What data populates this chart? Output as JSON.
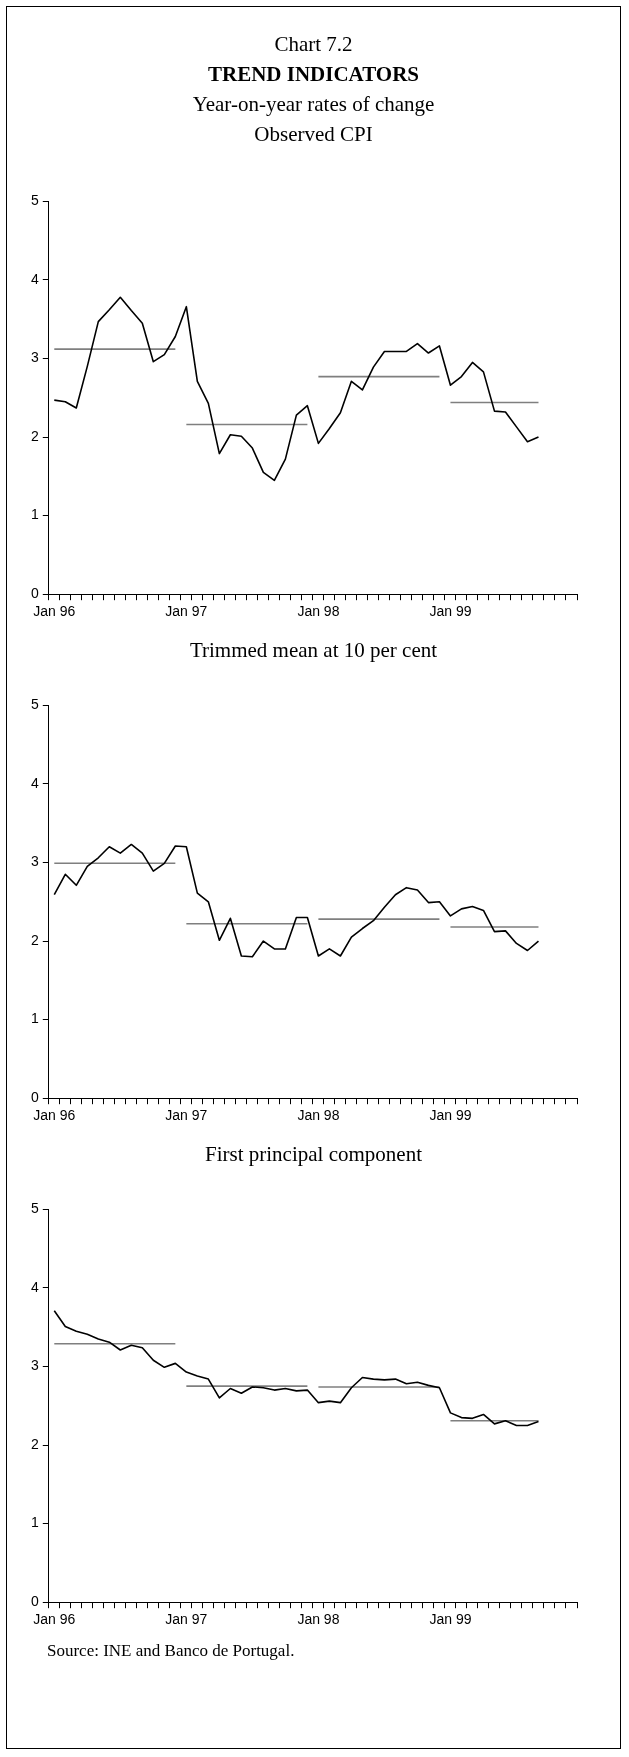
{
  "chart_data": [
    {
      "type": "other",
      "title": "Chart 7.2",
      "subtitle": "TREND INDICATORS",
      "annotations": [
        "Year-on-year rates of change"
      ]
    },
    {
      "type": "line",
      "title": "Observed CPI",
      "categories": [
        "Jan 96",
        null,
        null,
        null,
        null,
        null,
        null,
        null,
        null,
        null,
        null,
        null,
        "Jan 97",
        null,
        null,
        null,
        null,
        null,
        null,
        null,
        null,
        null,
        null,
        null,
        "Jan 98",
        null,
        null,
        null,
        null,
        null,
        null,
        null,
        null,
        null,
        null,
        null,
        "Jan 99",
        null,
        null,
        null,
        null,
        null,
        null,
        null,
        null,
        null,
        null,
        null
      ],
      "series": [
        {
          "color": "#000000",
          "values": [
            2.47,
            2.45,
            2.37,
            2.9,
            3.47,
            3.62,
            3.78,
            3.61,
            3.45,
            2.96,
            3.05,
            3.28,
            3.66,
            2.71,
            2.43,
            1.79,
            2.03,
            2.01,
            1.86,
            1.55,
            1.45,
            1.72,
            2.28,
            2.4,
            1.92,
            2.11,
            2.31,
            2.71,
            2.6,
            2.89,
            3.09,
            3.09,
            3.09,
            3.19,
            3.07,
            3.16,
            2.66,
            2.77,
            2.95,
            2.83,
            2.33,
            2.32,
            2.13,
            1.94,
            2.0,
            null,
            null,
            null
          ]
        },
        {
          "color": "#7f7f7f",
          "values": [
            3.12,
            3.12,
            3.12,
            3.12,
            3.12,
            3.12,
            3.12,
            3.12,
            3.12,
            3.12,
            3.12,
            3.12,
            null,
            null,
            null,
            null,
            null,
            null,
            null,
            null,
            null,
            null,
            null,
            null,
            null,
            null,
            null,
            null,
            null,
            null,
            null,
            null,
            null,
            null,
            null,
            null,
            null,
            null,
            null,
            null,
            null,
            null,
            null,
            null,
            null,
            null,
            null,
            null
          ]
        },
        {
          "color": "#7f7f7f",
          "values": [
            null,
            null,
            null,
            null,
            null,
            null,
            null,
            null,
            null,
            null,
            null,
            null,
            2.16,
            2.16,
            2.16,
            2.16,
            2.16,
            2.16,
            2.16,
            2.16,
            2.16,
            2.16,
            2.16,
            2.16,
            null,
            null,
            null,
            null,
            null,
            null,
            null,
            null,
            null,
            null,
            null,
            null,
            null,
            null,
            null,
            null,
            null,
            null,
            null,
            null,
            null,
            null,
            null,
            null
          ]
        },
        {
          "color": "#7f7f7f",
          "values": [
            null,
            null,
            null,
            null,
            null,
            null,
            null,
            null,
            null,
            null,
            null,
            null,
            null,
            null,
            null,
            null,
            null,
            null,
            null,
            null,
            null,
            null,
            null,
            null,
            2.77,
            2.77,
            2.77,
            2.77,
            2.77,
            2.77,
            2.77,
            2.77,
            2.77,
            2.77,
            2.77,
            2.77,
            null,
            null,
            null,
            null,
            null,
            null,
            null,
            null,
            null,
            null,
            null,
            null
          ]
        },
        {
          "color": "#7f7f7f",
          "values": [
            null,
            null,
            null,
            null,
            null,
            null,
            null,
            null,
            null,
            null,
            null,
            null,
            null,
            null,
            null,
            null,
            null,
            null,
            null,
            null,
            null,
            null,
            null,
            null,
            null,
            null,
            null,
            null,
            null,
            null,
            null,
            null,
            null,
            null,
            null,
            null,
            2.44,
            2.44,
            2.44,
            2.44,
            2.44,
            2.44,
            2.44,
            2.44,
            2.44,
            null,
            null,
            null
          ]
        }
      ],
      "ylim": [
        0,
        5
      ],
      "yticks": [
        0,
        1,
        2,
        3,
        4,
        5
      ],
      "grid": false,
      "marker": "none",
      "line_style": "solid"
    },
    {
      "type": "line",
      "title": "Trimmed mean at 10 per cent",
      "categories": [
        "Jan 96",
        null,
        null,
        null,
        null,
        null,
        null,
        null,
        null,
        null,
        null,
        null,
        "Jan 97",
        null,
        null,
        null,
        null,
        null,
        null,
        null,
        null,
        null,
        null,
        null,
        "Jan 98",
        null,
        null,
        null,
        null,
        null,
        null,
        null,
        null,
        null,
        null,
        null,
        "Jan 99",
        null,
        null,
        null,
        null,
        null,
        null,
        null,
        null,
        null,
        null,
        null
      ],
      "series": [
        {
          "color": "#000000",
          "values": [
            2.59,
            2.85,
            2.71,
            2.95,
            3.06,
            3.2,
            3.12,
            3.23,
            3.12,
            2.89,
            2.99,
            3.21,
            3.2,
            2.61,
            2.5,
            2.01,
            2.29,
            1.81,
            1.8,
            2.0,
            1.9,
            1.9,
            2.3,
            2.3,
            1.81,
            1.9,
            1.81,
            2.05,
            2.16,
            2.26,
            2.43,
            2.59,
            2.68,
            2.65,
            2.49,
            2.5,
            2.32,
            2.41,
            2.44,
            2.39,
            2.12,
            2.13,
            1.97,
            1.88,
            2.0,
            null,
            null,
            null
          ]
        },
        {
          "color": "#7f7f7f",
          "values": [
            2.99,
            2.99,
            2.99,
            2.99,
            2.99,
            2.99,
            2.99,
            2.99,
            2.99,
            2.99,
            2.99,
            2.99,
            null,
            null,
            null,
            null,
            null,
            null,
            null,
            null,
            null,
            null,
            null,
            null,
            null,
            null,
            null,
            null,
            null,
            null,
            null,
            null,
            null,
            null,
            null,
            null,
            null,
            null,
            null,
            null,
            null,
            null,
            null,
            null,
            null,
            null,
            null,
            null
          ]
        },
        {
          "color": "#7f7f7f",
          "values": [
            null,
            null,
            null,
            null,
            null,
            null,
            null,
            null,
            null,
            null,
            null,
            null,
            2.22,
            2.22,
            2.22,
            2.22,
            2.22,
            2.22,
            2.22,
            2.22,
            2.22,
            2.22,
            2.22,
            2.22,
            null,
            null,
            null,
            null,
            null,
            null,
            null,
            null,
            null,
            null,
            null,
            null,
            null,
            null,
            null,
            null,
            null,
            null,
            null,
            null,
            null,
            null,
            null,
            null
          ]
        },
        {
          "color": "#7f7f7f",
          "values": [
            null,
            null,
            null,
            null,
            null,
            null,
            null,
            null,
            null,
            null,
            null,
            null,
            null,
            null,
            null,
            null,
            null,
            null,
            null,
            null,
            null,
            null,
            null,
            null,
            2.28,
            2.28,
            2.28,
            2.28,
            2.28,
            2.28,
            2.28,
            2.28,
            2.28,
            2.28,
            2.28,
            2.28,
            null,
            null,
            null,
            null,
            null,
            null,
            null,
            null,
            null,
            null,
            null,
            null
          ]
        },
        {
          "color": "#7f7f7f",
          "values": [
            null,
            null,
            null,
            null,
            null,
            null,
            null,
            null,
            null,
            null,
            null,
            null,
            null,
            null,
            null,
            null,
            null,
            null,
            null,
            null,
            null,
            null,
            null,
            null,
            null,
            null,
            null,
            null,
            null,
            null,
            null,
            null,
            null,
            null,
            null,
            null,
            2.18,
            2.18,
            2.18,
            2.18,
            2.18,
            2.18,
            2.18,
            2.18,
            2.18,
            null,
            null,
            null
          ]
        }
      ],
      "ylim": [
        0,
        5
      ],
      "yticks": [
        0,
        1,
        2,
        3,
        4,
        5
      ],
      "grid": false,
      "marker": "none",
      "line_style": "solid"
    },
    {
      "type": "line",
      "title": "First principal component",
      "categories": [
        "Jan 96",
        null,
        null,
        null,
        null,
        null,
        null,
        null,
        null,
        null,
        null,
        null,
        "Jan 97",
        null,
        null,
        null,
        null,
        null,
        null,
        null,
        null,
        null,
        null,
        null,
        "Jan 98",
        null,
        null,
        null,
        null,
        null,
        null,
        null,
        null,
        null,
        null,
        null,
        "Jan 99",
        null,
        null,
        null,
        null,
        null,
        null,
        null,
        null,
        null,
        null,
        null
      ],
      "series": [
        {
          "color": "#000000",
          "values": [
            3.71,
            3.51,
            3.45,
            3.41,
            3.35,
            3.31,
            3.21,
            3.27,
            3.24,
            3.08,
            2.99,
            3.04,
            2.93,
            2.88,
            2.84,
            2.6,
            2.72,
            2.66,
            2.74,
            2.73,
            2.7,
            2.72,
            2.69,
            2.7,
            2.54,
            2.56,
            2.54,
            2.73,
            2.86,
            2.84,
            2.83,
            2.84,
            2.78,
            2.8,
            2.76,
            2.73,
            2.41,
            2.35,
            2.34,
            2.39,
            2.27,
            2.31,
            2.25,
            2.25,
            2.3,
            null,
            null,
            null
          ]
        },
        {
          "color": "#7f7f7f",
          "values": [
            3.29,
            3.29,
            3.29,
            3.29,
            3.29,
            3.29,
            3.29,
            3.29,
            3.29,
            3.29,
            3.29,
            3.29,
            null,
            null,
            null,
            null,
            null,
            null,
            null,
            null,
            null,
            null,
            null,
            null,
            null,
            null,
            null,
            null,
            null,
            null,
            null,
            null,
            null,
            null,
            null,
            null,
            null,
            null,
            null,
            null,
            null,
            null,
            null,
            null,
            null,
            null,
            null,
            null
          ]
        },
        {
          "color": "#7f7f7f",
          "values": [
            null,
            null,
            null,
            null,
            null,
            null,
            null,
            null,
            null,
            null,
            null,
            null,
            2.75,
            2.75,
            2.75,
            2.75,
            2.75,
            2.75,
            2.75,
            2.75,
            2.75,
            2.75,
            2.75,
            2.75,
            null,
            null,
            null,
            null,
            null,
            null,
            null,
            null,
            null,
            null,
            null,
            null,
            null,
            null,
            null,
            null,
            null,
            null,
            null,
            null,
            null,
            null,
            null,
            null
          ]
        },
        {
          "color": "#7f7f7f",
          "values": [
            null,
            null,
            null,
            null,
            null,
            null,
            null,
            null,
            null,
            null,
            null,
            null,
            null,
            null,
            null,
            null,
            null,
            null,
            null,
            null,
            null,
            null,
            null,
            null,
            2.74,
            2.74,
            2.74,
            2.74,
            2.74,
            2.74,
            2.74,
            2.74,
            2.74,
            2.74,
            2.74,
            2.74,
            null,
            null,
            null,
            null,
            null,
            null,
            null,
            null,
            null,
            null,
            null,
            null
          ]
        },
        {
          "color": "#7f7f7f",
          "values": [
            null,
            null,
            null,
            null,
            null,
            null,
            null,
            null,
            null,
            null,
            null,
            null,
            null,
            null,
            null,
            null,
            null,
            null,
            null,
            null,
            null,
            null,
            null,
            null,
            null,
            null,
            null,
            null,
            null,
            null,
            null,
            null,
            null,
            null,
            null,
            null,
            2.31,
            2.31,
            2.31,
            2.31,
            2.31,
            2.31,
            2.31,
            2.31,
            2.31,
            null,
            null,
            null
          ]
        }
      ],
      "ylim": [
        0,
        5
      ],
      "yticks": [
        0,
        1,
        2,
        3,
        4,
        5
      ],
      "grid": false,
      "marker": "none",
      "line_style": "solid",
      "annotations": [
        "Source: INE and Banco de Portugal."
      ]
    }
  ]
}
